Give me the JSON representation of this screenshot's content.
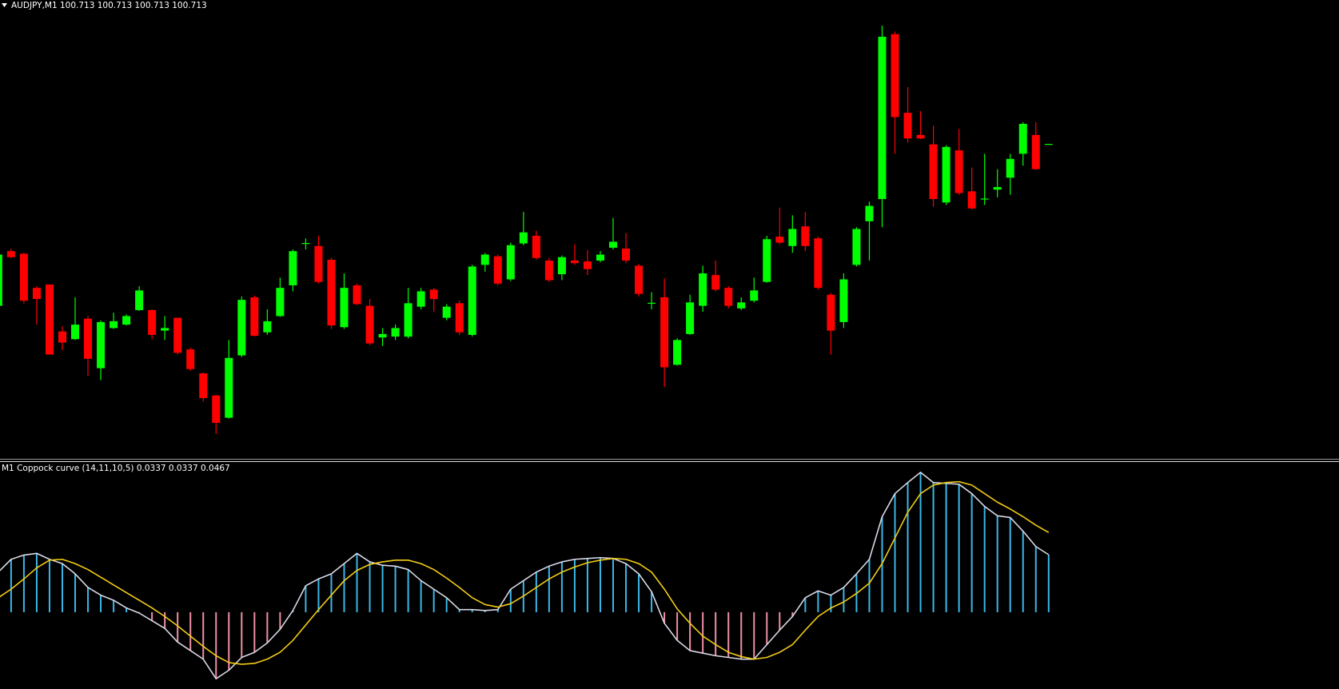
{
  "chart_data": [
    {
      "type": "candlestick",
      "title": "AUDJPY,M1  100.713 100.713 100.713 100.713",
      "up_color": "#00ff00",
      "down_color": "#ff0000",
      "ylim": [
        100.344,
        100.882
      ],
      "open": [
        100.524,
        100.588,
        100.585,
        100.545,
        100.549,
        100.494,
        100.485,
        100.509,
        100.451,
        100.498,
        100.502,
        100.519,
        100.519,
        100.495,
        100.51,
        100.473,
        100.445,
        100.419,
        100.393,
        100.466,
        100.534,
        100.493,
        100.512,
        100.548,
        100.596,
        100.594,
        100.578,
        100.499,
        100.548,
        100.524,
        100.487,
        100.488,
        100.488,
        100.523,
        100.543,
        100.51,
        100.527,
        100.49,
        100.572,
        100.582,
        100.555,
        100.597,
        100.606,
        100.577,
        100.561,
        100.577,
        100.576,
        100.577,
        100.592,
        100.591,
        100.571,
        100.526,
        100.534,
        100.455,
        100.491,
        100.524,
        100.56,
        100.545,
        100.521,
        100.53,
        100.552,
        100.605,
        100.594,
        100.617,
        100.603,
        100.537,
        100.505,
        100.572,
        100.623,
        100.649,
        100.842,
        100.75,
        100.724,
        100.713,
        100.645,
        100.706,
        100.658,
        100.648,
        100.66,
        100.674,
        100.702,
        100.724,
        100.713
      ],
      "high": [
        100.587,
        100.591,
        100.586,
        100.547,
        100.549,
        100.5,
        100.534,
        100.512,
        100.507,
        100.516,
        100.514,
        100.547,
        100.52,
        100.512,
        100.51,
        100.475,
        100.446,
        100.42,
        100.484,
        100.535,
        100.536,
        100.52,
        100.557,
        100.59,
        100.603,
        100.606,
        100.58,
        100.562,
        100.55,
        100.532,
        100.498,
        100.502,
        100.545,
        100.545,
        100.545,
        100.526,
        100.53,
        100.572,
        100.586,
        100.584,
        100.598,
        100.634,
        100.612,
        100.58,
        100.583,
        100.596,
        100.589,
        100.588,
        100.627,
        100.609,
        100.573,
        100.54,
        100.556,
        100.486,
        100.537,
        100.571,
        100.577,
        100.547,
        100.534,
        100.557,
        100.606,
        100.639,
        100.63,
        100.634,
        100.605,
        100.539,
        100.562,
        100.616,
        100.646,
        100.852,
        100.845,
        100.78,
        100.752,
        100.735,
        100.712,
        100.731,
        100.686,
        100.702,
        100.684,
        100.702,
        100.739,
        100.739,
        100.713
      ],
      "low": [
        100.522,
        100.58,
        100.527,
        100.502,
        100.467,
        100.472,
        100.484,
        100.442,
        100.437,
        100.497,
        100.501,
        100.518,
        100.485,
        100.484,
        100.467,
        100.448,
        100.412,
        100.374,
        100.392,
        100.464,
        100.488,
        100.49,
        100.511,
        100.541,
        100.59,
        100.55,
        100.497,
        100.497,
        100.525,
        100.478,
        100.477,
        100.484,
        100.486,
        100.52,
        100.517,
        100.507,
        100.49,
        100.488,
        100.564,
        100.548,
        100.553,
        100.595,
        100.578,
        100.552,
        100.554,
        100.572,
        100.56,
        100.575,
        100.59,
        100.574,
        100.535,
        100.52,
        100.429,
        100.454,
        100.49,
        100.517,
        100.541,
        100.521,
        100.519,
        100.528,
        100.551,
        100.596,
        100.586,
        100.588,
        100.543,
        100.467,
        100.498,
        100.57,
        100.577,
        100.616,
        100.702,
        100.715,
        100.719,
        100.64,
        100.642,
        100.654,
        100.637,
        100.642,
        100.651,
        100.654,
        100.688,
        100.683,
        100.713
      ],
      "close": [
        100.584,
        100.581,
        100.53,
        100.532,
        100.467,
        100.481,
        100.502,
        100.462,
        100.505,
        100.506,
        100.512,
        100.542,
        100.49,
        100.498,
        100.469,
        100.45,
        100.416,
        100.387,
        100.463,
        100.531,
        100.489,
        100.506,
        100.545,
        100.588,
        100.597,
        100.552,
        100.501,
        100.545,
        100.526,
        100.48,
        100.491,
        100.498,
        100.527,
        100.541,
        100.532,
        100.523,
        100.493,
        100.57,
        100.584,
        100.55,
        100.595,
        100.61,
        100.58,
        100.554,
        100.581,
        100.574,
        100.567,
        100.584,
        100.599,
        100.577,
        100.538,
        100.527,
        100.452,
        100.484,
        100.528,
        100.562,
        100.543,
        100.524,
        100.528,
        100.542,
        100.602,
        100.598,
        100.614,
        100.594,
        100.545,
        100.495,
        100.555,
        100.614,
        100.641,
        100.839,
        100.745,
        100.72,
        100.72,
        100.649,
        100.71,
        100.656,
        100.638,
        100.649,
        100.663,
        100.696,
        100.737,
        100.684,
        100.713
      ]
    },
    {
      "type": "indicator",
      "title": "M1 Coppock curve  (14,11,10,5) 0.0337 0.0337 0.0467",
      "ylim": [
        -0.045,
        0.0885
      ],
      "series": [
        {
          "style": "histogram",
          "color": "#3bb7e8",
          "negative_color": "#f090a4",
          "values": [
            0.0235,
            0.031,
            0.0335,
            0.0345,
            0.031,
            0.0285,
            0.0225,
            0.0145,
            0.01,
            0.007,
            0.0025,
            -0.0005,
            -0.005,
            -0.0095,
            -0.0175,
            -0.0225,
            -0.0275,
            -0.039,
            -0.034,
            -0.0265,
            -0.0235,
            -0.018,
            -0.01,
            0.001,
            0.0155,
            0.0195,
            0.0225,
            0.0285,
            0.0345,
            0.0295,
            0.0275,
            0.027,
            0.025,
            0.0185,
            0.0135,
            0.0085,
            0.0015,
            0.0015,
            0.001,
            0.0015,
            0.0135,
            0.0185,
            0.0235,
            0.027,
            0.0295,
            0.031,
            0.0315,
            0.032,
            0.0315,
            0.0285,
            0.0225,
            0.012,
            -0.0065,
            -0.0165,
            -0.0225,
            -0.024,
            -0.0255,
            -0.0265,
            -0.0275,
            -0.0275,
            -0.019,
            -0.0105,
            -0.0025,
            0.0085,
            0.0125,
            0.01,
            0.0145,
            0.0225,
            0.031,
            0.056,
            0.0695,
            0.076,
            0.082,
            0.076,
            0.0755,
            0.075,
            0.0695,
            0.062,
            0.0565,
            0.0555,
            0.0475,
            0.0385,
            0.0337
          ]
        },
        {
          "style": "line",
          "color": "#d8d8e6",
          "values": [
            0.0235,
            0.031,
            0.0335,
            0.0345,
            0.031,
            0.0285,
            0.0225,
            0.0145,
            0.01,
            0.007,
            0.0025,
            -0.0005,
            -0.005,
            -0.0095,
            -0.0175,
            -0.0225,
            -0.0275,
            -0.039,
            -0.034,
            -0.0265,
            -0.0235,
            -0.018,
            -0.01,
            0.001,
            0.0155,
            0.0195,
            0.0225,
            0.0285,
            0.0345,
            0.0295,
            0.0275,
            0.027,
            0.025,
            0.0185,
            0.0135,
            0.0085,
            0.0015,
            0.0015,
            0.001,
            0.0015,
            0.0135,
            0.0185,
            0.0235,
            0.027,
            0.0295,
            0.031,
            0.0315,
            0.032,
            0.0315,
            0.0285,
            0.0225,
            0.012,
            -0.0065,
            -0.0165,
            -0.0225,
            -0.024,
            -0.0255,
            -0.0265,
            -0.0275,
            -0.0275,
            -0.019,
            -0.0105,
            -0.0025,
            0.0085,
            0.0125,
            0.01,
            0.0145,
            0.0225,
            0.031,
            0.056,
            0.0695,
            0.076,
            0.082,
            0.076,
            0.0755,
            0.075,
            0.0695,
            0.062,
            0.0565,
            0.0555,
            0.0475,
            0.0385,
            0.0337
          ]
        },
        {
          "style": "line",
          "color": "#f2cc14",
          "values": [
            0.0085,
            0.0135,
            0.0195,
            0.026,
            0.0305,
            0.031,
            0.0285,
            0.025,
            0.0205,
            0.016,
            0.0115,
            0.007,
            0.0025,
            -0.0025,
            -0.008,
            -0.014,
            -0.02,
            -0.0255,
            -0.0295,
            -0.0305,
            -0.03,
            -0.0275,
            -0.0235,
            -0.0165,
            -0.0075,
            0.0015,
            0.01,
            0.0185,
            0.0245,
            0.028,
            0.0295,
            0.0305,
            0.0305,
            0.0285,
            0.025,
            0.02,
            0.0145,
            0.0085,
            0.0045,
            0.003,
            0.005,
            0.0095,
            0.0145,
            0.0195,
            0.0235,
            0.0265,
            0.029,
            0.0305,
            0.0315,
            0.031,
            0.0285,
            0.0235,
            0.0135,
            0.002,
            -0.0065,
            -0.014,
            -0.019,
            -0.0235,
            -0.026,
            -0.0275,
            -0.0265,
            -0.0235,
            -0.019,
            -0.0105,
            -0.0025,
            0.0025,
            0.006,
            0.011,
            0.017,
            0.0285,
            0.0435,
            0.0585,
            0.0695,
            0.0745,
            0.076,
            0.0765,
            0.0745,
            0.0695,
            0.0645,
            0.0605,
            0.056,
            0.051,
            0.0467
          ]
        }
      ]
    }
  ]
}
